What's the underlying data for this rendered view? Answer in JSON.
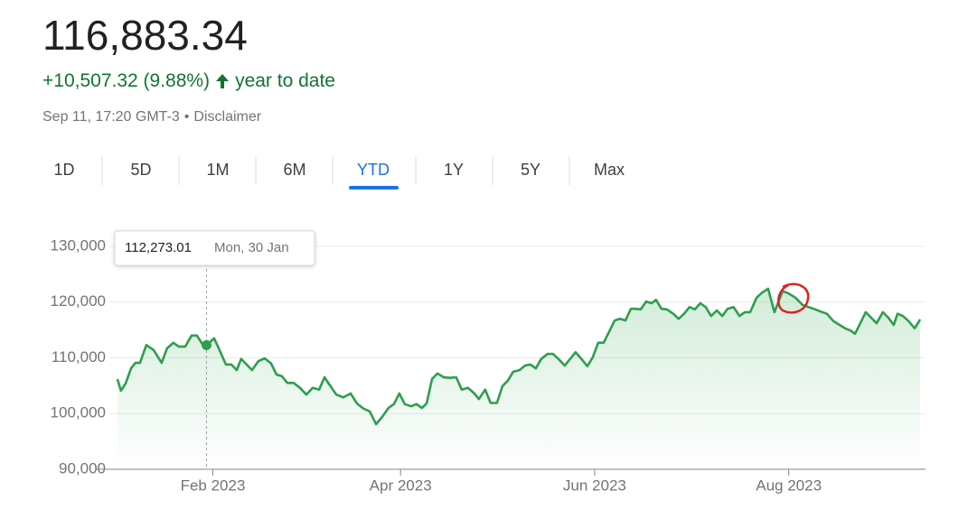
{
  "header": {
    "price": "116,883.34",
    "change": "+10,507.32 (9.88%)",
    "change_label": "year to date",
    "timestamp": "Sep 11, 17:20 GMT-3",
    "separator": "•",
    "disclaimer": "Disclaimer"
  },
  "tabs": {
    "items": [
      "1D",
      "5D",
      "1M",
      "6M",
      "YTD",
      "1Y",
      "5Y",
      "Max"
    ],
    "selected": 4
  },
  "tooltip": {
    "value": "112,273.01",
    "date": "Mon, 30 Jan",
    "index": 16
  },
  "chart_data": {
    "type": "line",
    "color": "#2e9e4f",
    "grid": true,
    "x": [
      2,
      3.1,
      4.6,
      6.3,
      7.7,
      9.1,
      11.1,
      13.4,
      15.9,
      17.6,
      19.6,
      21.3,
      23.3,
      25.3,
      27,
      29,
      30,
      32.4,
      34.1,
      36.1,
      37.8,
      39.5,
      40.9,
      42.6,
      44.3,
      46.3,
      48.3,
      50.3,
      52,
      53.7,
      55.4,
      57.4,
      59.4,
      61.4,
      63.4,
      65.4,
      67.1,
      69,
      70.8,
      73,
      75.3,
      77.3,
      79.3,
      81.3,
      83.3,
      85.2,
      87.2,
      88.9,
      90.6,
      92.3,
      94.3,
      96,
      97.7,
      99.2,
      100.9,
      102.6,
      104.6,
      106.5,
      108.5,
      110.2,
      112.2,
      114.2,
      115.6,
      117.6,
      119.3,
      121.3,
      123,
      124.7,
      126.4,
      128.4,
      130.1,
      131.8,
      133.5,
      135.2,
      137.2,
      138.9,
      140.6,
      142.6,
      144.3,
      146,
      147.7,
      149.7,
      151.4,
      153.1,
      154.8,
      156.5,
      158.3,
      160,
      161.7,
      163.4,
      164.8,
      166.5,
      168.2,
      169.9,
      171.3,
      173,
      174.7,
      176.7,
      178.4,
      180.1,
      181.8,
      183.5,
      185.2,
      186.9,
      188.6,
      190.4,
      192.1,
      193.8,
      195.7,
      197.5,
      199.2,
      200.9,
      202.9,
      204.6,
      206.5,
      208.5,
      211.1,
      212.8,
      215.1,
      217.3,
      219.3,
      221.3,
      223,
      225,
      227,
      229,
      230.7,
      232.4,
      233.8,
      235.5,
      237.2,
      238.9,
      240.6,
      242.6,
      244.3,
      246,
      247.2,
      248.9,
      250.6,
      252.6,
      254.3
    ],
    "values": [
      106200,
      104100,
      105400,
      108100,
      109100,
      109100,
      112300,
      111400,
      109100,
      111700,
      112700,
      112000,
      112000,
      114000,
      114000,
      112200,
      112273.01,
      113500,
      111400,
      108800,
      108800,
      107800,
      109800,
      108800,
      107800,
      109400,
      109900,
      109000,
      107000,
      106700,
      105500,
      105500,
      104600,
      103400,
      104600,
      104300,
      106500,
      104900,
      103400,
      102900,
      103600,
      101800,
      100900,
      100400,
      98100,
      99400,
      101000,
      101700,
      103600,
      101700,
      101300,
      101700,
      101000,
      101800,
      106200,
      107200,
      106500,
      106400,
      106500,
      104300,
      104600,
      103600,
      102600,
      104300,
      101900,
      101900,
      104900,
      105900,
      107500,
      107800,
      108600,
      108800,
      108100,
      109800,
      110700,
      110700,
      109800,
      108600,
      109800,
      111000,
      109900,
      108500,
      110100,
      112700,
      112700,
      114600,
      116700,
      117000,
      116700,
      118800,
      118800,
      118700,
      120100,
      119800,
      120400,
      118800,
      118700,
      117900,
      117000,
      117900,
      119100,
      118700,
      119800,
      119100,
      117500,
      118500,
      117500,
      118800,
      119100,
      117500,
      118200,
      118200,
      120800,
      121700,
      122400,
      118200,
      122000,
      121600,
      120800,
      119500,
      119100,
      118700,
      118300,
      117900,
      116600,
      115900,
      115300,
      114900,
      114300,
      116200,
      118200,
      117200,
      116200,
      118200,
      117200,
      115900,
      117900,
      117500,
      116600,
      115300,
      116883.34
    ],
    "xlim": [
      -4.5,
      256
    ],
    "ylim": [
      90000,
      130000
    ],
    "xticks": [
      {
        "value": 32,
        "label": "Feb 2023"
      },
      {
        "value": 91,
        "label": "Apr 2023"
      },
      {
        "value": 152,
        "label": "Jun 2023"
      },
      {
        "value": 213,
        "label": "Aug 2023"
      }
    ],
    "yticks": [
      {
        "value": 90000,
        "label": "90,000"
      },
      {
        "value": 100000,
        "label": "100,000"
      },
      {
        "value": 110000,
        "label": "110,000"
      },
      {
        "value": 120000,
        "label": "120,000"
      },
      {
        "value": 130000,
        "label": "130,000"
      }
    ]
  }
}
